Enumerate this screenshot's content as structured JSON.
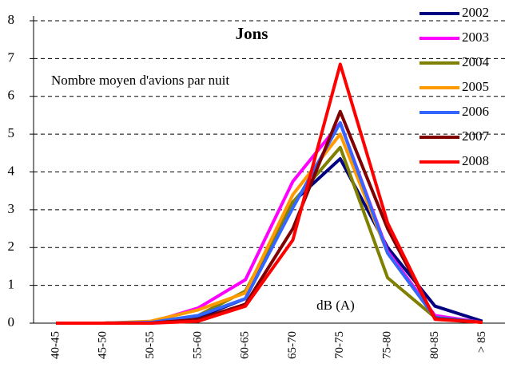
{
  "chart_data": {
    "type": "line",
    "title": "Jons",
    "subtitle": "Nombre moyen d'avions par nuit",
    "x_label": "dB (A)",
    "categories": [
      "40-45",
      "45-50",
      "50-55",
      "55-60",
      "60-65",
      "65-70",
      "70-75",
      "75-80",
      "80-85",
      "> 85"
    ],
    "ylim": [
      0,
      8
    ],
    "yticks": [
      0,
      1,
      2,
      3,
      4,
      5,
      6,
      7,
      8
    ],
    "grid": true,
    "series": [
      {
        "name": "2002",
        "color": "#000080",
        "values": [
          0,
          0,
          0.02,
          0.15,
          0.65,
          3.2,
          4.35,
          2.0,
          0.45,
          0.05
        ]
      },
      {
        "name": "2003",
        "color": "#ff00ff",
        "values": [
          0,
          0,
          0.02,
          0.4,
          1.15,
          3.75,
          5.3,
          1.9,
          0.2,
          0.02
        ]
      },
      {
        "name": "2004",
        "color": "#808000",
        "values": [
          0,
          0,
          0.02,
          0.2,
          0.85,
          3.2,
          4.65,
          1.2,
          0.15,
          0.02
        ]
      },
      {
        "name": "2005",
        "color": "#ff9900",
        "values": [
          0,
          0,
          0.05,
          0.35,
          0.8,
          3.4,
          5.0,
          1.85,
          0.15,
          0.02
        ]
      },
      {
        "name": "2006",
        "color": "#3366ff",
        "values": [
          0,
          0,
          0.02,
          0.2,
          0.65,
          3.05,
          5.3,
          1.85,
          0.15,
          0.02
        ]
      },
      {
        "name": "2007",
        "color": "#800000",
        "values": [
          0,
          0,
          0,
          0.1,
          0.5,
          2.5,
          5.6,
          2.5,
          0.12,
          0.02
        ]
      },
      {
        "name": "2008",
        "color": "#ff0000",
        "values": [
          0,
          0,
          0,
          0.05,
          0.45,
          2.2,
          6.85,
          2.65,
          0.1,
          0.02
        ]
      }
    ]
  }
}
